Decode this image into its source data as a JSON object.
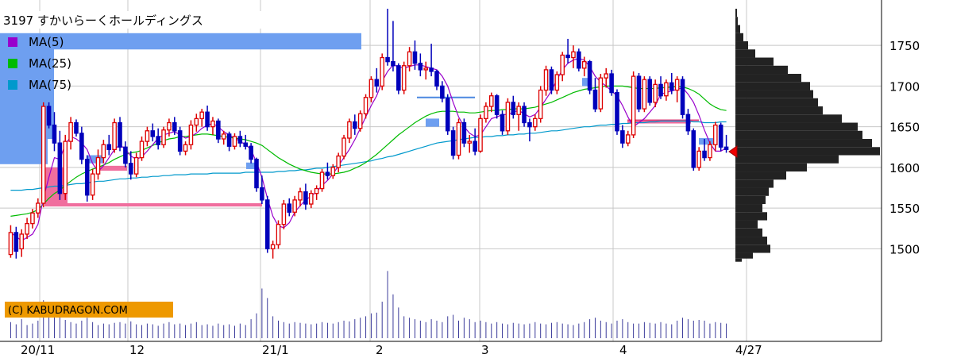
{
  "chart_data": {
    "type": "candlestick",
    "title": "3197 すかいらーくホールディングス",
    "legend": [
      {
        "name": "MA(5)",
        "color": "#9900cc"
      },
      {
        "name": "MA(25)",
        "color": "#00bb00"
      },
      {
        "name": "MA(75)",
        "color": "#0099cc"
      }
    ],
    "copyright": "(C) KABUDRAGON.COM",
    "x_ticks": [
      "20/11",
      "12",
      "21/1",
      "2",
      "3",
      "4",
      "4/27"
    ],
    "y_ticks": [
      1500,
      1550,
      1600,
      1650,
      1700,
      1750
    ],
    "ylim": [
      1476,
      1796
    ],
    "current_price": 1622,
    "colors": {
      "up": "#dd0000",
      "down": "#0000bb",
      "ma5": "#9900cc",
      "ma25": "#00bb00",
      "ma75": "#0099cc",
      "profile": "#222222",
      "grid": "#c8c8c8",
      "zone_blue": "#6e9ff0",
      "zone_pink": "#f06e9e",
      "marker": "#ee0000"
    },
    "ohlc": [
      [
        1493,
        1529,
        1489,
        1520
      ],
      [
        1520,
        1527,
        1488,
        1497
      ],
      [
        1500,
        1524,
        1490,
        1518
      ],
      [
        1518,
        1538,
        1512,
        1531
      ],
      [
        1531,
        1549,
        1525,
        1544
      ],
      [
        1544,
        1562,
        1538,
        1556
      ],
      [
        1556,
        1680,
        1551,
        1675
      ],
      [
        1675,
        1680,
        1648,
        1652
      ],
      [
        1652,
        1668,
        1620,
        1630
      ],
      [
        1630,
        1645,
        1560,
        1568
      ],
      [
        1568,
        1640,
        1560,
        1632
      ],
      [
        1632,
        1662,
        1622,
        1655
      ],
      [
        1655,
        1659,
        1638,
        1642
      ],
      [
        1642,
        1650,
        1604,
        1610
      ],
      [
        1610,
        1615,
        1558,
        1566
      ],
      [
        1566,
        1598,
        1560,
        1592
      ],
      [
        1592,
        1622,
        1585,
        1612
      ],
      [
        1612,
        1634,
        1605,
        1628
      ],
      [
        1628,
        1640,
        1615,
        1622
      ],
      [
        1622,
        1660,
        1618,
        1655
      ],
      [
        1655,
        1662,
        1620,
        1625
      ],
      [
        1625,
        1632,
        1600,
        1605
      ],
      [
        1605,
        1620,
        1585,
        1592
      ],
      [
        1592,
        1618,
        1588,
        1612
      ],
      [
        1612,
        1638,
        1608,
        1632
      ],
      [
        1632,
        1650,
        1626,
        1645
      ],
      [
        1645,
        1654,
        1632,
        1638
      ],
      [
        1638,
        1648,
        1622,
        1628
      ],
      [
        1628,
        1650,
        1624,
        1646
      ],
      [
        1646,
        1660,
        1638,
        1655
      ],
      [
        1655,
        1662,
        1640,
        1645
      ],
      [
        1645,
        1650,
        1615,
        1620
      ],
      [
        1620,
        1632,
        1615,
        1628
      ],
      [
        1628,
        1658,
        1622,
        1652
      ],
      [
        1652,
        1666,
        1644,
        1660
      ],
      [
        1660,
        1672,
        1650,
        1668
      ],
      [
        1668,
        1676,
        1645,
        1650
      ],
      [
        1650,
        1662,
        1640,
        1657
      ],
      [
        1657,
        1660,
        1630,
        1635
      ],
      [
        1635,
        1645,
        1628,
        1641
      ],
      [
        1641,
        1644,
        1620,
        1626
      ],
      [
        1626,
        1642,
        1622,
        1638
      ],
      [
        1638,
        1645,
        1625,
        1630
      ],
      [
        1630,
        1640,
        1622,
        1626
      ],
      [
        1626,
        1630,
        1605,
        1610
      ],
      [
        1610,
        1612,
        1570,
        1575
      ],
      [
        1575,
        1590,
        1555,
        1560
      ],
      [
        1560,
        1565,
        1495,
        1500
      ],
      [
        1500,
        1510,
        1488,
        1505
      ],
      [
        1505,
        1535,
        1500,
        1530
      ],
      [
        1530,
        1560,
        1524,
        1555
      ],
      [
        1555,
        1562,
        1540,
        1545
      ],
      [
        1545,
        1565,
        1540,
        1560
      ],
      [
        1560,
        1575,
        1552,
        1570
      ],
      [
        1570,
        1580,
        1548,
        1555
      ],
      [
        1555,
        1572,
        1550,
        1568
      ],
      [
        1568,
        1578,
        1560,
        1574
      ],
      [
        1574,
        1598,
        1570,
        1594
      ],
      [
        1594,
        1606,
        1585,
        1590
      ],
      [
        1590,
        1604,
        1586,
        1600
      ],
      [
        1600,
        1618,
        1594,
        1614
      ],
      [
        1614,
        1640,
        1610,
        1636
      ],
      [
        1636,
        1660,
        1630,
        1656
      ],
      [
        1656,
        1665,
        1640,
        1648
      ],
      [
        1648,
        1670,
        1644,
        1666
      ],
      [
        1666,
        1690,
        1660,
        1686
      ],
      [
        1686,
        1712,
        1680,
        1708
      ],
      [
        1708,
        1722,
        1692,
        1700
      ],
      [
        1700,
        1740,
        1695,
        1735
      ],
      [
        1735,
        1795,
        1725,
        1730
      ],
      [
        1730,
        1780,
        1718,
        1725
      ],
      [
        1725,
        1728,
        1690,
        1695
      ],
      [
        1695,
        1730,
        1690,
        1725
      ],
      [
        1725,
        1748,
        1718,
        1742
      ],
      [
        1742,
        1756,
        1720,
        1728
      ],
      [
        1728,
        1740,
        1712,
        1720
      ],
      [
        1720,
        1730,
        1708,
        1722
      ],
      [
        1722,
        1752,
        1712,
        1718
      ],
      [
        1718,
        1720,
        1695,
        1700
      ],
      [
        1700,
        1706,
        1680,
        1685
      ],
      [
        1685,
        1690,
        1640,
        1645
      ],
      [
        1645,
        1650,
        1610,
        1615
      ],
      [
        1615,
        1660,
        1610,
        1655
      ],
      [
        1655,
        1660,
        1625,
        1630
      ],
      [
        1630,
        1640,
        1618,
        1632
      ],
      [
        1632,
        1648,
        1615,
        1620
      ],
      [
        1620,
        1665,
        1618,
        1660
      ],
      [
        1660,
        1680,
        1655,
        1675
      ],
      [
        1675,
        1692,
        1668,
        1688
      ],
      [
        1688,
        1690,
        1660,
        1665
      ],
      [
        1665,
        1670,
        1640,
        1645
      ],
      [
        1645,
        1685,
        1640,
        1680
      ],
      [
        1680,
        1688,
        1660,
        1665
      ],
      [
        1665,
        1680,
        1645,
        1675
      ],
      [
        1675,
        1680,
        1650,
        1655
      ],
      [
        1655,
        1660,
        1632,
        1650
      ],
      [
        1650,
        1665,
        1645,
        1660
      ],
      [
        1660,
        1700,
        1655,
        1695
      ],
      [
        1695,
        1725,
        1688,
        1720
      ],
      [
        1720,
        1724,
        1690,
        1695
      ],
      [
        1695,
        1718,
        1690,
        1714
      ],
      [
        1714,
        1742,
        1706,
        1738
      ],
      [
        1738,
        1758,
        1728,
        1735
      ],
      [
        1735,
        1750,
        1722,
        1742
      ],
      [
        1742,
        1746,
        1718,
        1722
      ],
      [
        1722,
        1736,
        1712,
        1730
      ],
      [
        1730,
        1732,
        1690,
        1695
      ],
      [
        1695,
        1710,
        1668,
        1672
      ],
      [
        1672,
        1715,
        1668,
        1710
      ],
      [
        1710,
        1722,
        1698,
        1715
      ],
      [
        1715,
        1720,
        1688,
        1692
      ],
      [
        1692,
        1696,
        1640,
        1645
      ],
      [
        1645,
        1652,
        1624,
        1630
      ],
      [
        1630,
        1645,
        1626,
        1640
      ],
      [
        1640,
        1718,
        1636,
        1712
      ],
      [
        1712,
        1716,
        1668,
        1672
      ],
      [
        1672,
        1712,
        1668,
        1708
      ],
      [
        1708,
        1712,
        1676,
        1680
      ],
      [
        1680,
        1708,
        1674,
        1702
      ],
      [
        1702,
        1712,
        1684,
        1688
      ],
      [
        1688,
        1708,
        1682,
        1704
      ],
      [
        1704,
        1716,
        1690,
        1695
      ],
      [
        1695,
        1712,
        1680,
        1708
      ],
      [
        1708,
        1712,
        1660,
        1665
      ],
      [
        1665,
        1672,
        1640,
        1645
      ],
      [
        1645,
        1648,
        1596,
        1600
      ],
      [
        1600,
        1625,
        1596,
        1620
      ],
      [
        1620,
        1635,
        1608,
        1612
      ],
      [
        1612,
        1632,
        1608,
        1628
      ],
      [
        1628,
        1656,
        1620,
        1652
      ],
      [
        1652,
        1655,
        1620,
        1625
      ],
      [
        1625,
        1640,
        1618,
        1622
      ]
    ],
    "ma5": [
      1520,
      1515,
      1510,
      1514,
      1518,
      1530,
      1562,
      1588,
      1612,
      1610,
      1628,
      1638,
      1635,
      1630,
      1622,
      1605,
      1595,
      1602,
      1612,
      1622,
      1628,
      1622,
      1614,
      1610,
      1613,
      1620,
      1628,
      1636,
      1640,
      1642,
      1644,
      1640,
      1636,
      1638,
      1642,
      1648,
      1652,
      1654,
      1650,
      1644,
      1640,
      1636,
      1632,
      1628,
      1622,
      1606,
      1588,
      1562,
      1540,
      1528,
      1526,
      1532,
      1545,
      1553,
      1560,
      1565,
      1570,
      1578,
      1584,
      1592,
      1602,
      1612,
      1622,
      1634,
      1648,
      1662,
      1676,
      1688,
      1706,
      1718,
      1726,
      1724,
      1722,
      1724,
      1726,
      1726,
      1724,
      1722,
      1720,
      1712,
      1700,
      1680,
      1662,
      1650,
      1642,
      1638,
      1640,
      1650,
      1660,
      1662,
      1665,
      1665,
      1668,
      1670,
      1666,
      1662,
      1665,
      1674,
      1684,
      1694,
      1708,
      1720,
      1728,
      1732,
      1734,
      1732,
      1724,
      1712,
      1705,
      1700,
      1694,
      1688,
      1676,
      1662,
      1650,
      1655,
      1660,
      1668,
      1676,
      1690,
      1692,
      1694,
      1696,
      1698,
      1690,
      1680,
      1664,
      1646,
      1630,
      1620,
      1620,
      1624
    ],
    "ma25": [
      1540,
      1541,
      1542,
      1543,
      1545,
      1548,
      1555,
      1562,
      1568,
      1572,
      1578,
      1583,
      1588,
      1592,
      1595,
      1598,
      1600,
      1603,
      1606,
      1610,
      1613,
      1616,
      1618,
      1619,
      1621,
      1624,
      1627,
      1630,
      1633,
      1635,
      1636,
      1638,
      1638,
      1639,
      1640,
      1641,
      1641,
      1640,
      1639,
      1638,
      1637,
      1636,
      1635,
      1634,
      1632,
      1630,
      1627,
      1622,
      1617,
      1612,
      1608,
      1604,
      1601,
      1598,
      1596,
      1594,
      1593,
      1592,
      1592,
      1592,
      1593,
      1594,
      1596,
      1599,
      1602,
      1606,
      1611,
      1616,
      1622,
      1628,
      1634,
      1640,
      1645,
      1650,
      1655,
      1659,
      1663,
      1666,
      1668,
      1669,
      1669,
      1669,
      1668,
      1668,
      1667,
      1667,
      1668,
      1669,
      1670,
      1670,
      1671,
      1671,
      1672,
      1672,
      1672,
      1673,
      1674,
      1676,
      1678,
      1680,
      1683,
      1686,
      1689,
      1692,
      1694,
      1696,
      1697,
      1698,
      1699,
      1700,
      1700,
      1700,
      1700,
      1699,
      1698,
      1697,
      1697,
      1697,
      1697,
      1698,
      1698,
      1699,
      1699,
      1699,
      1697,
      1694,
      1690,
      1684,
      1678,
      1674,
      1671,
      1670
    ],
    "ma75": [
      1572,
      1572,
      1572,
      1573,
      1573,
      1574,
      1575,
      1576,
      1577,
      1577,
      1578,
      1579,
      1580,
      1580,
      1581,
      1582,
      1583,
      1583,
      1584,
      1585,
      1586,
      1586,
      1587,
      1587,
      1588,
      1588,
      1589,
      1589,
      1590,
      1590,
      1591,
      1591,
      1591,
      1592,
      1592,
      1592,
      1592,
      1593,
      1593,
      1593,
      1593,
      1593,
      1593,
      1594,
      1594,
      1594,
      1594,
      1594,
      1594,
      1595,
      1595,
      1596,
      1596,
      1597,
      1597,
      1598,
      1599,
      1599,
      1600,
      1601,
      1602,
      1603,
      1604,
      1605,
      1606,
      1607,
      1608,
      1610,
      1611,
      1613,
      1614,
      1616,
      1618,
      1620,
      1622,
      1624,
      1626,
      1628,
      1630,
      1631,
      1632,
      1633,
      1634,
      1635,
      1636,
      1637,
      1637,
      1638,
      1638,
      1639,
      1639,
      1640,
      1640,
      1641,
      1641,
      1642,
      1642,
      1643,
      1644,
      1645,
      1645,
      1646,
      1647,
      1648,
      1649,
      1650,
      1650,
      1651,
      1652,
      1652,
      1653,
      1653,
      1654,
      1654,
      1655,
      1655,
      1655,
      1656,
      1656,
      1657,
      1657,
      1657,
      1657,
      1657,
      1657,
      1656,
      1656,
      1655,
      1655,
      1655,
      1656,
      1656
    ],
    "volume": [
      0.22,
      0.19,
      0.26,
      0.18,
      0.2,
      0.24,
      0.52,
      0.36,
      0.3,
      0.34,
      0.25,
      0.22,
      0.2,
      0.24,
      0.28,
      0.22,
      0.18,
      0.2,
      0.19,
      0.21,
      0.22,
      0.2,
      0.23,
      0.19,
      0.18,
      0.2,
      0.19,
      0.17,
      0.2,
      0.22,
      0.19,
      0.2,
      0.18,
      0.2,
      0.22,
      0.18,
      0.19,
      0.17,
      0.2,
      0.18,
      0.19,
      0.17,
      0.2,
      0.18,
      0.26,
      0.34,
      0.68,
      0.55,
      0.3,
      0.24,
      0.22,
      0.2,
      0.22,
      0.21,
      0.2,
      0.19,
      0.2,
      0.22,
      0.21,
      0.2,
      0.22,
      0.24,
      0.23,
      0.26,
      0.28,
      0.3,
      0.34,
      0.35,
      0.5,
      0.92,
      0.6,
      0.42,
      0.3,
      0.28,
      0.26,
      0.24,
      0.22,
      0.26,
      0.24,
      0.22,
      0.3,
      0.32,
      0.24,
      0.28,
      0.26,
      0.22,
      0.24,
      0.22,
      0.2,
      0.22,
      0.2,
      0.19,
      0.21,
      0.2,
      0.19,
      0.2,
      0.22,
      0.2,
      0.19,
      0.21,
      0.22,
      0.2,
      0.19,
      0.18,
      0.2,
      0.22,
      0.26,
      0.28,
      0.24,
      0.22,
      0.2,
      0.24,
      0.26,
      0.22,
      0.2,
      0.2,
      0.22,
      0.21,
      0.2,
      0.22,
      0.2,
      0.19,
      0.24,
      0.28,
      0.26,
      0.24,
      0.25,
      0.24,
      0.2,
      0.22,
      0.21,
      0.2
    ],
    "volume_profile": [
      [
        1795,
        2
      ],
      [
        1785,
        3
      ],
      [
        1775,
        6
      ],
      [
        1765,
        10
      ],
      [
        1755,
        16
      ],
      [
        1745,
        25
      ],
      [
        1735,
        48
      ],
      [
        1725,
        66
      ],
      [
        1715,
        83
      ],
      [
        1705,
        94
      ],
      [
        1695,
        98
      ],
      [
        1685,
        104
      ],
      [
        1675,
        110
      ],
      [
        1665,
        134
      ],
      [
        1655,
        154
      ],
      [
        1645,
        160
      ],
      [
        1635,
        172
      ],
      [
        1625,
        182
      ],
      [
        1615,
        130
      ],
      [
        1605,
        90
      ],
      [
        1595,
        64
      ],
      [
        1585,
        48
      ],
      [
        1575,
        42
      ],
      [
        1565,
        38
      ],
      [
        1555,
        34
      ],
      [
        1545,
        40
      ],
      [
        1535,
        28
      ],
      [
        1525,
        34
      ],
      [
        1515,
        40
      ],
      [
        1505,
        44
      ],
      [
        1495,
        22
      ],
      [
        1488,
        8
      ]
    ],
    "zones": [
      {
        "kind": "blue",
        "y1": 1635,
        "y2": 1757,
        "x1": 0,
        "x2": 68
      },
      {
        "kind": "blue",
        "y1": 1745,
        "y2": 1765,
        "x1": 0,
        "x2": 455
      },
      {
        "kind": "blue",
        "y1": 1604,
        "y2": 1675,
        "x1": 0,
        "x2": 60
      },
      {
        "kind": "pink",
        "y1": 1555,
        "y2": 1600,
        "x1": 56,
        "x2": 85
      },
      {
        "kind": "pink",
        "y1": 1552,
        "y2": 1556,
        "x1": 56,
        "x2": 330
      },
      {
        "kind": "pink",
        "y1": 1596,
        "y2": 1602,
        "x1": 125,
        "x2": 160
      },
      {
        "kind": "blue",
        "y1": 1605,
        "y2": 1615,
        "x1": 110,
        "x2": 130
      },
      {
        "kind": "blue",
        "y1": 1598,
        "y2": 1606,
        "x1": 310,
        "x2": 322
      },
      {
        "kind": "blue",
        "y1": 1650,
        "y2": 1660,
        "x1": 536,
        "x2": 553
      },
      {
        "kind": "blue",
        "y1": 1700,
        "y2": 1710,
        "x1": 733,
        "x2": 745
      },
      {
        "kind": "pink",
        "y1": 1654,
        "y2": 1657,
        "x1": 790,
        "x2": 870
      },
      {
        "kind": "blue",
        "y1": 1628,
        "y2": 1636,
        "x1": 880,
        "x2": 900
      }
    ],
    "annotation_lines": [
      {
        "y": 1686,
        "x1": 525,
        "x2": 598
      },
      {
        "y": 1658,
        "x1": 790,
        "x2": 880
      }
    ]
  }
}
